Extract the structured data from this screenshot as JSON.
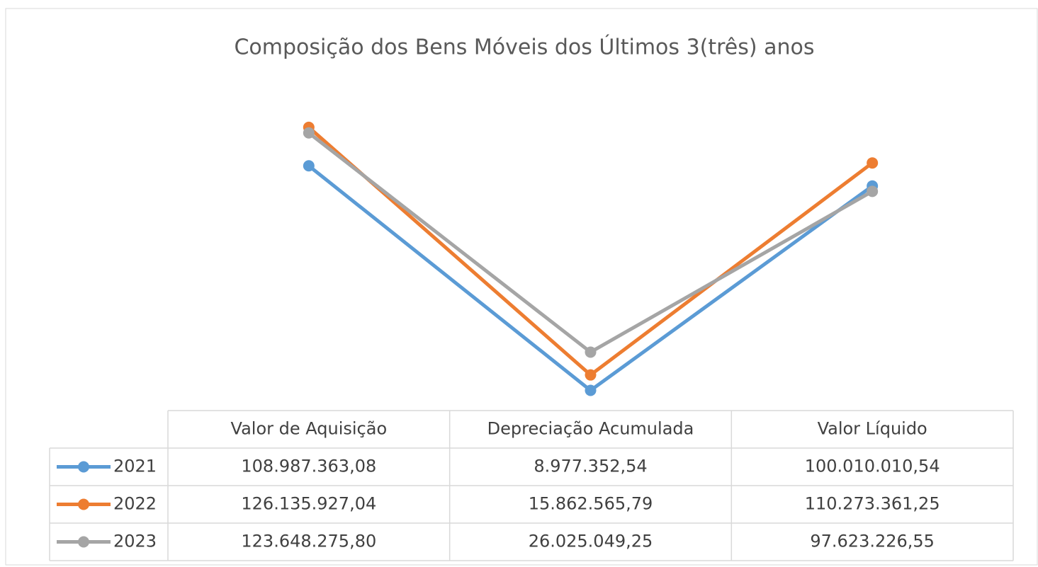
{
  "chart_data": {
    "type": "line",
    "title": "Composição dos Bens Móveis dos Últimos 3(três) anos",
    "categories": [
      "Valor de Aquisição",
      "Depreciação Acumulada",
      "Valor Líquido"
    ],
    "ylim": [
      0,
      180000000
    ],
    "series": [
      {
        "name": "2021",
        "color": "#5b9bd5",
        "values": [
          108987363.08,
          8977352.54,
          100010010.54
        ],
        "value_labels": [
          "108.987.363,08",
          "8.977.352,54",
          "100.010.010,54"
        ]
      },
      {
        "name": "2022",
        "color": "#ed7d31",
        "values": [
          126135927.04,
          15862565.79,
          110273361.25
        ],
        "value_labels": [
          "126.135.927,04",
          "15.862.565,79",
          "110.273.361,25"
        ]
      },
      {
        "name": "2023",
        "color": "#a5a5a5",
        "values": [
          123648275.8,
          26025049.25,
          97623226.55
        ],
        "value_labels": [
          "123.648.275,80",
          "26.025.049,25",
          "97.623.226,55"
        ]
      }
    ]
  }
}
